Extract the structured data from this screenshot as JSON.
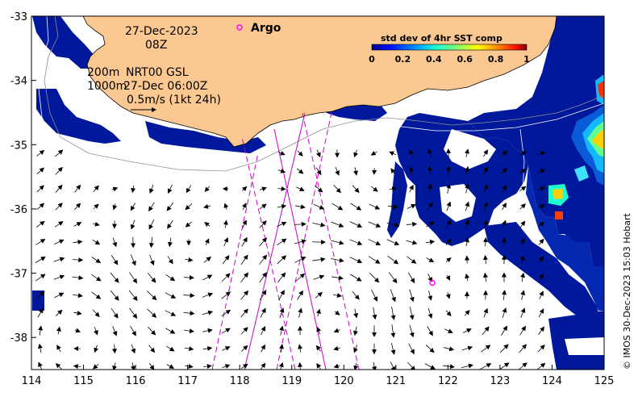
{
  "chart_data": {
    "type": "map",
    "xlim": [
      114,
      125
    ],
    "ylim": [
      -38.5,
      -33
    ],
    "x_ticks": [
      "114",
      "115",
      "116",
      "117",
      "118",
      "119",
      "120",
      "121",
      "122",
      "123",
      "124",
      "125"
    ],
    "y_ticks": [
      "-33",
      "-34",
      "-35",
      "-36",
      "-37",
      "-38"
    ],
    "date": "27-Dec-2023",
    "hour": "08Z",
    "contours_label_1": "200m",
    "contours_label_2": "1000m",
    "product": "NRT00 GSL",
    "product_time": "27-Dec 06:00Z",
    "scale_label": "0.5m/s (1kt 24h)",
    "argo_label": "Argo",
    "argo_float": {
      "lon": 121.7,
      "lat": -37.15
    },
    "colorbar": {
      "title": "std dev of 4hr SST comp",
      "ticks": [
        "0",
        "0.2",
        "0.4",
        "0.6",
        "0.8",
        "1"
      ],
      "range": [
        0,
        1
      ]
    },
    "credit": "© IMOS 30-Dec-2023 15:03 Hobart",
    "colors": {
      "land": "#fcc891",
      "argo": "#ff00ff",
      "track": "#cc00cc",
      "sst_low": "#00189c",
      "sst_high": "#a00000"
    }
  }
}
